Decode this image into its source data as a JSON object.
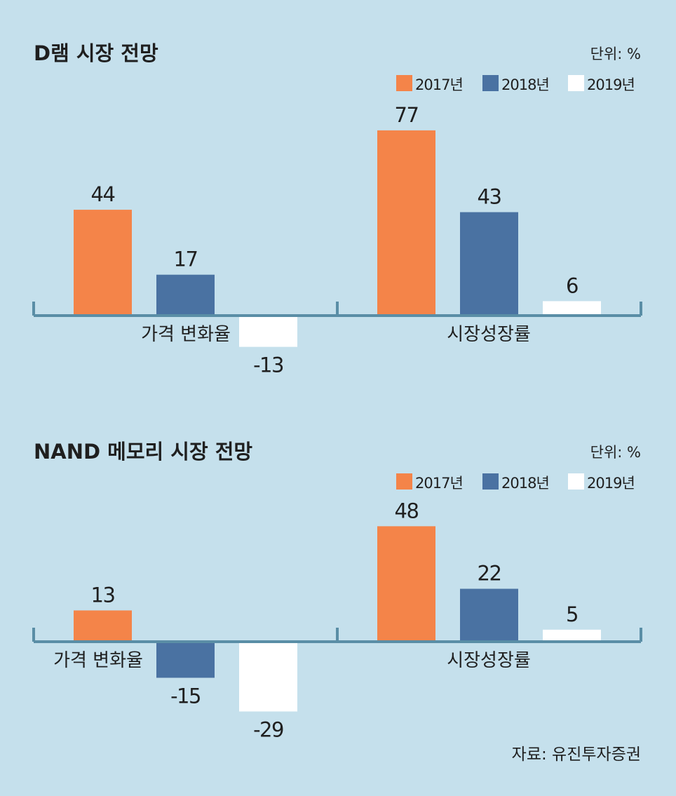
{
  "source": "자료: 유진투자증권",
  "colors": {
    "background": "#c5e0ec",
    "series_2017": "#f48449",
    "series_2018": "#4a72a2",
    "series_2019": "#ffffff",
    "axis": "#5a8ea6",
    "text": "#1f1f1f"
  },
  "chart_data": [
    {
      "type": "bar",
      "title": "D램 시장 전망",
      "unit_label": "단위: %",
      "legend_position": "top-right",
      "categories": [
        "가격 변화율",
        "시장성장률"
      ],
      "series": [
        {
          "name": "2017년",
          "values": [
            44,
            77
          ]
        },
        {
          "name": "2018년",
          "values": [
            17,
            43
          ]
        },
        {
          "name": "2019년",
          "values": [
            -13,
            6
          ]
        }
      ]
    },
    {
      "type": "bar",
      "title": "NAND 메모리 시장 전망",
      "unit_label": "단위: %",
      "legend_position": "top-right",
      "categories": [
        "가격 변화율",
        "시장성장률"
      ],
      "series": [
        {
          "name": "2017년",
          "values": [
            13,
            48
          ]
        },
        {
          "name": "2018년",
          "values": [
            -15,
            22
          ]
        },
        {
          "name": "2019년",
          "values": [
            -29,
            5
          ]
        }
      ]
    }
  ]
}
